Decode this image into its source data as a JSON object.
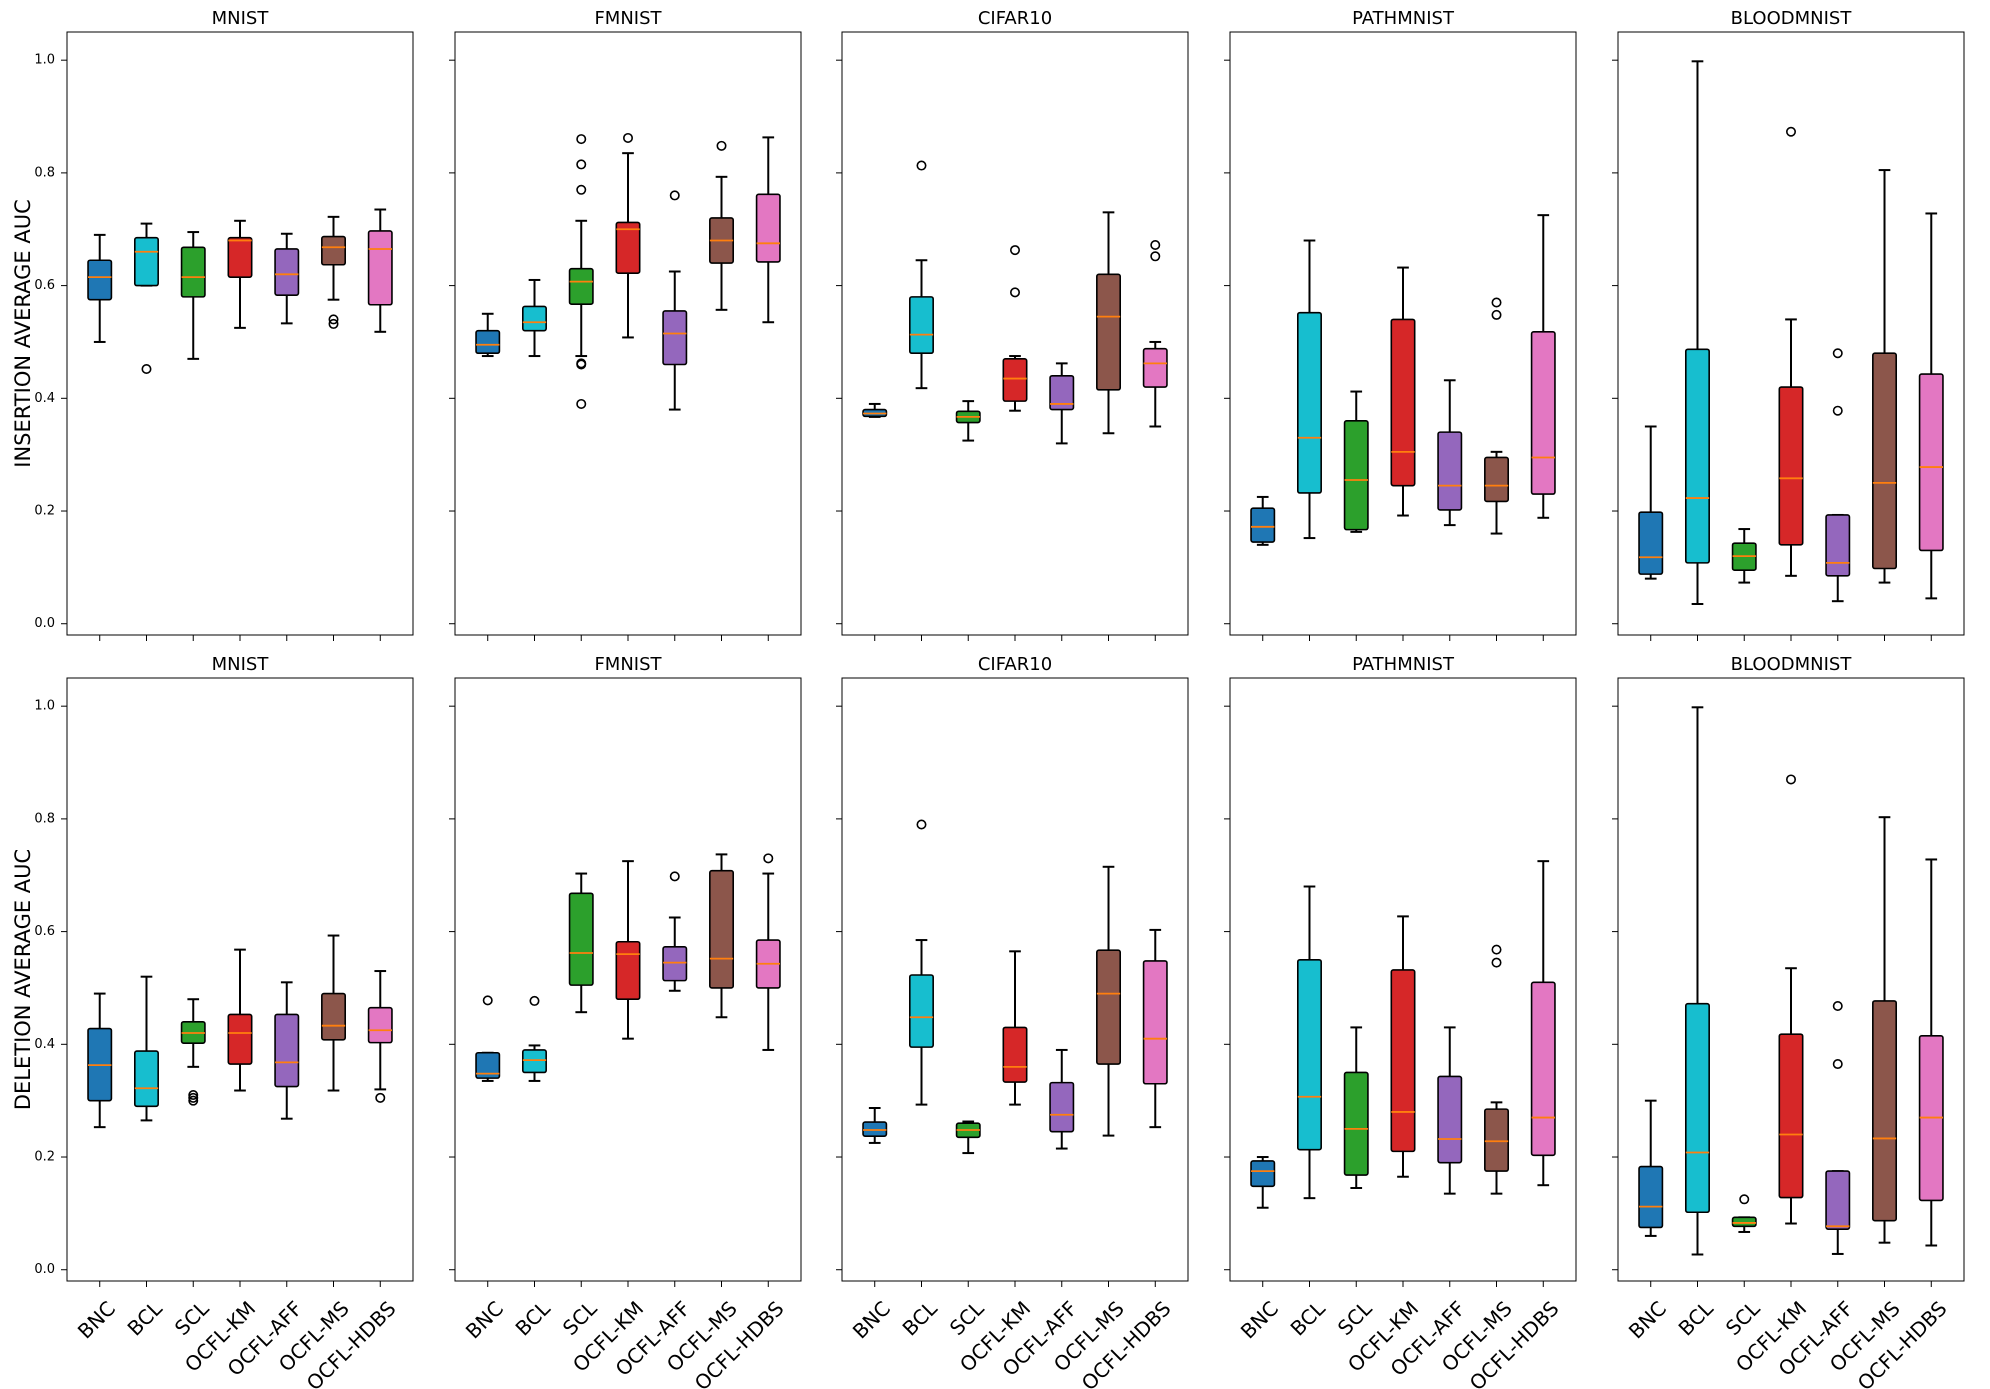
{
  "chart_data": {
    "type": "box",
    "categories": [
      "BNC",
      "BCL",
      "SCL",
      "OCFL-KM",
      "OCFL-AFF",
      "OCFL-MS",
      "OCFL-HDBS"
    ],
    "colors": [
      "#1f77b4",
      "#17becf",
      "#2ca02c",
      "#d62728",
      "#9467bd",
      "#8c564b",
      "#e377c2"
    ],
    "median_color": "#ff7f0e",
    "ylim": [
      -0.02,
      1.05
    ],
    "yticks": [
      0.0,
      0.2,
      0.4,
      0.6,
      0.8,
      1.0
    ],
    "ytick_labels": [
      "0.0",
      "0.2",
      "0.4",
      "0.6",
      "0.8",
      "1.0"
    ],
    "rows": [
      {
        "ylabel": "INSERTION AVERAGE AUC",
        "panels": [
          {
            "title": "MNIST",
            "boxes": [
              {
                "whislo": 0.5,
                "q1": 0.575,
                "med": 0.615,
                "q3": 0.645,
                "whishi": 0.69,
                "fliers": []
              },
              {
                "whislo": 0.6,
                "q1": 0.6,
                "med": 0.66,
                "q3": 0.685,
                "whishi": 0.71,
                "fliers": [
                  0.452
                ]
              },
              {
                "whislo": 0.47,
                "q1": 0.58,
                "med": 0.615,
                "q3": 0.668,
                "whishi": 0.695,
                "fliers": []
              },
              {
                "whislo": 0.525,
                "q1": 0.615,
                "med": 0.68,
                "q3": 0.685,
                "whishi": 0.715,
                "fliers": []
              },
              {
                "whislo": 0.533,
                "q1": 0.583,
                "med": 0.62,
                "q3": 0.665,
                "whishi": 0.692,
                "fliers": []
              },
              {
                "whislo": 0.575,
                "q1": 0.637,
                "med": 0.668,
                "q3": 0.687,
                "whishi": 0.722,
                "fliers": [
                  0.532,
                  0.54
                ]
              },
              {
                "whislo": 0.518,
                "q1": 0.566,
                "med": 0.665,
                "q3": 0.697,
                "whishi": 0.735,
                "fliers": []
              }
            ]
          },
          {
            "title": "FMNIST",
            "boxes": [
              {
                "whislo": 0.475,
                "q1": 0.48,
                "med": 0.495,
                "q3": 0.52,
                "whishi": 0.55,
                "fliers": []
              },
              {
                "whislo": 0.475,
                "q1": 0.52,
                "med": 0.535,
                "q3": 0.563,
                "whishi": 0.61,
                "fliers": []
              },
              {
                "whislo": 0.475,
                "q1": 0.567,
                "med": 0.607,
                "q3": 0.63,
                "whishi": 0.715,
                "fliers": [
                  0.39,
                  0.46,
                  0.462,
                  0.77,
                  0.815,
                  0.86
                ]
              },
              {
                "whislo": 0.508,
                "q1": 0.622,
                "med": 0.7,
                "q3": 0.712,
                "whishi": 0.835,
                "fliers": [
                  0.862
                ]
              },
              {
                "whislo": 0.38,
                "q1": 0.46,
                "med": 0.515,
                "q3": 0.555,
                "whishi": 0.625,
                "fliers": [
                  0.76
                ]
              },
              {
                "whislo": 0.557,
                "q1": 0.64,
                "med": 0.68,
                "q3": 0.72,
                "whishi": 0.793,
                "fliers": [
                  0.848
                ]
              },
              {
                "whislo": 0.535,
                "q1": 0.642,
                "med": 0.675,
                "q3": 0.762,
                "whishi": 0.863,
                "fliers": []
              }
            ]
          },
          {
            "title": "CIFAR10",
            "boxes": [
              {
                "whislo": 0.367,
                "q1": 0.368,
                "med": 0.373,
                "q3": 0.38,
                "whishi": 0.39,
                "fliers": []
              },
              {
                "whislo": 0.418,
                "q1": 0.48,
                "med": 0.513,
                "q3": 0.58,
                "whishi": 0.645,
                "fliers": [
                  0.813
                ]
              },
              {
                "whislo": 0.325,
                "q1": 0.357,
                "med": 0.367,
                "q3": 0.377,
                "whishi": 0.395,
                "fliers": []
              },
              {
                "whislo": 0.378,
                "q1": 0.395,
                "med": 0.435,
                "q3": 0.47,
                "whishi": 0.475,
                "fliers": [
                  0.588,
                  0.663
                ]
              },
              {
                "whislo": 0.32,
                "q1": 0.38,
                "med": 0.39,
                "q3": 0.44,
                "whishi": 0.462,
                "fliers": []
              },
              {
                "whislo": 0.338,
                "q1": 0.415,
                "med": 0.545,
                "q3": 0.62,
                "whishi": 0.73,
                "fliers": []
              },
              {
                "whislo": 0.35,
                "q1": 0.42,
                "med": 0.462,
                "q3": 0.488,
                "whishi": 0.5,
                "fliers": [
                  0.652,
                  0.672
                ]
              }
            ]
          },
          {
            "title": "PATHMNIST",
            "boxes": [
              {
                "whislo": 0.14,
                "q1": 0.145,
                "med": 0.172,
                "q3": 0.205,
                "whishi": 0.225,
                "fliers": []
              },
              {
                "whislo": 0.152,
                "q1": 0.232,
                "med": 0.33,
                "q3": 0.552,
                "whishi": 0.68,
                "fliers": []
              },
              {
                "whislo": 0.163,
                "q1": 0.167,
                "med": 0.255,
                "q3": 0.36,
                "whishi": 0.412,
                "fliers": []
              },
              {
                "whislo": 0.192,
                "q1": 0.245,
                "med": 0.305,
                "q3": 0.54,
                "whishi": 0.632,
                "fliers": []
              },
              {
                "whislo": 0.175,
                "q1": 0.202,
                "med": 0.245,
                "q3": 0.34,
                "whishi": 0.432,
                "fliers": []
              },
              {
                "whislo": 0.16,
                "q1": 0.217,
                "med": 0.245,
                "q3": 0.295,
                "whishi": 0.305,
                "fliers": [
                  0.548,
                  0.57
                ]
              },
              {
                "whislo": 0.188,
                "q1": 0.23,
                "med": 0.295,
                "q3": 0.518,
                "whishi": 0.725,
                "fliers": []
              }
            ]
          },
          {
            "title": "BLOODMNIST",
            "boxes": [
              {
                "whislo": 0.08,
                "q1": 0.088,
                "med": 0.118,
                "q3": 0.198,
                "whishi": 0.35,
                "fliers": []
              },
              {
                "whislo": 0.035,
                "q1": 0.108,
                "med": 0.223,
                "q3": 0.487,
                "whishi": 0.998,
                "fliers": []
              },
              {
                "whislo": 0.073,
                "q1": 0.095,
                "med": 0.12,
                "q3": 0.143,
                "whishi": 0.168,
                "fliers": []
              },
              {
                "whislo": 0.085,
                "q1": 0.14,
                "med": 0.258,
                "q3": 0.42,
                "whishi": 0.54,
                "fliers": [
                  0.873
                ]
              },
              {
                "whislo": 0.04,
                "q1": 0.085,
                "med": 0.108,
                "q3": 0.193,
                "whishi": 0.193,
                "fliers": [
                  0.378,
                  0.48
                ]
              },
              {
                "whislo": 0.073,
                "q1": 0.098,
                "med": 0.25,
                "q3": 0.48,
                "whishi": 0.805,
                "fliers": []
              },
              {
                "whislo": 0.045,
                "q1": 0.13,
                "med": 0.278,
                "q3": 0.443,
                "whishi": 0.728,
                "fliers": []
              }
            ]
          }
        ]
      },
      {
        "ylabel": "DELETION AVERAGE AUC",
        "panels": [
          {
            "title": "MNIST",
            "boxes": [
              {
                "whislo": 0.253,
                "q1": 0.3,
                "med": 0.363,
                "q3": 0.428,
                "whishi": 0.49,
                "fliers": []
              },
              {
                "whislo": 0.265,
                "q1": 0.29,
                "med": 0.322,
                "q3": 0.388,
                "whishi": 0.52,
                "fliers": []
              },
              {
                "whislo": 0.36,
                "q1": 0.402,
                "med": 0.42,
                "q3": 0.44,
                "whishi": 0.48,
                "fliers": [
                  0.3,
                  0.305,
                  0.31
                ]
              },
              {
                "whislo": 0.318,
                "q1": 0.365,
                "med": 0.42,
                "q3": 0.453,
                "whishi": 0.568,
                "fliers": []
              },
              {
                "whislo": 0.268,
                "q1": 0.325,
                "med": 0.368,
                "q3": 0.453,
                "whishi": 0.51,
                "fliers": []
              },
              {
                "whislo": 0.318,
                "q1": 0.408,
                "med": 0.433,
                "q3": 0.49,
                "whishi": 0.593,
                "fliers": []
              },
              {
                "whislo": 0.32,
                "q1": 0.403,
                "med": 0.425,
                "q3": 0.465,
                "whishi": 0.53,
                "fliers": [
                  0.305
                ]
              }
            ]
          },
          {
            "title": "FMNIST",
            "boxes": [
              {
                "whislo": 0.335,
                "q1": 0.34,
                "med": 0.348,
                "q3": 0.385,
                "whishi": 0.385,
                "fliers": [
                  0.478
                ]
              },
              {
                "whislo": 0.335,
                "q1": 0.35,
                "med": 0.372,
                "q3": 0.39,
                "whishi": 0.398,
                "fliers": [
                  0.477
                ]
              },
              {
                "whislo": 0.457,
                "q1": 0.505,
                "med": 0.562,
                "q3": 0.668,
                "whishi": 0.703,
                "fliers": []
              },
              {
                "whislo": 0.41,
                "q1": 0.48,
                "med": 0.56,
                "q3": 0.582,
                "whishi": 0.725,
                "fliers": []
              },
              {
                "whislo": 0.495,
                "q1": 0.513,
                "med": 0.545,
                "q3": 0.573,
                "whishi": 0.625,
                "fliers": [
                  0.698
                ]
              },
              {
                "whislo": 0.448,
                "q1": 0.5,
                "med": 0.552,
                "q3": 0.708,
                "whishi": 0.737,
                "fliers": []
              },
              {
                "whislo": 0.39,
                "q1": 0.5,
                "med": 0.543,
                "q3": 0.585,
                "whishi": 0.703,
                "fliers": [
                  0.73
                ]
              }
            ]
          },
          {
            "title": "CIFAR10",
            "boxes": [
              {
                "whislo": 0.225,
                "q1": 0.237,
                "med": 0.248,
                "q3": 0.262,
                "whishi": 0.287,
                "fliers": []
              },
              {
                "whislo": 0.293,
                "q1": 0.395,
                "med": 0.448,
                "q3": 0.523,
                "whishi": 0.585,
                "fliers": [
                  0.79
                ]
              },
              {
                "whislo": 0.207,
                "q1": 0.235,
                "med": 0.248,
                "q3": 0.26,
                "whishi": 0.263,
                "fliers": []
              },
              {
                "whislo": 0.293,
                "q1": 0.333,
                "med": 0.36,
                "q3": 0.43,
                "whishi": 0.565,
                "fliers": []
              },
              {
                "whislo": 0.215,
                "q1": 0.245,
                "med": 0.275,
                "q3": 0.332,
                "whishi": 0.39,
                "fliers": []
              },
              {
                "whislo": 0.238,
                "q1": 0.365,
                "med": 0.49,
                "q3": 0.567,
                "whishi": 0.715,
                "fliers": []
              },
              {
                "whislo": 0.253,
                "q1": 0.33,
                "med": 0.41,
                "q3": 0.548,
                "whishi": 0.603,
                "fliers": []
              }
            ]
          },
          {
            "title": "PATHMNIST",
            "boxes": [
              {
                "whislo": 0.11,
                "q1": 0.148,
                "med": 0.175,
                "q3": 0.193,
                "whishi": 0.2,
                "fliers": []
              },
              {
                "whislo": 0.127,
                "q1": 0.213,
                "med": 0.307,
                "q3": 0.55,
                "whishi": 0.68,
                "fliers": []
              },
              {
                "whislo": 0.145,
                "q1": 0.168,
                "med": 0.25,
                "q3": 0.35,
                "whishi": 0.43,
                "fliers": []
              },
              {
                "whislo": 0.165,
                "q1": 0.21,
                "med": 0.28,
                "q3": 0.532,
                "whishi": 0.627,
                "fliers": []
              },
              {
                "whislo": 0.135,
                "q1": 0.19,
                "med": 0.232,
                "q3": 0.343,
                "whishi": 0.43,
                "fliers": []
              },
              {
                "whislo": 0.135,
                "q1": 0.175,
                "med": 0.228,
                "q3": 0.285,
                "whishi": 0.297,
                "fliers": [
                  0.545,
                  0.568
                ]
              },
              {
                "whislo": 0.15,
                "q1": 0.203,
                "med": 0.27,
                "q3": 0.51,
                "whishi": 0.725,
                "fliers": []
              }
            ]
          },
          {
            "title": "BLOODMNIST",
            "boxes": [
              {
                "whislo": 0.06,
                "q1": 0.075,
                "med": 0.112,
                "q3": 0.183,
                "whishi": 0.3,
                "fliers": []
              },
              {
                "whislo": 0.027,
                "q1": 0.102,
                "med": 0.208,
                "q3": 0.472,
                "whishi": 0.998,
                "fliers": []
              },
              {
                "whislo": 0.067,
                "q1": 0.077,
                "med": 0.083,
                "q3": 0.093,
                "whishi": 0.093,
                "fliers": [
                  0.125
                ]
              },
              {
                "whislo": 0.082,
                "q1": 0.128,
                "med": 0.24,
                "q3": 0.418,
                "whishi": 0.535,
                "fliers": [
                  0.87
                ]
              },
              {
                "whislo": 0.028,
                "q1": 0.072,
                "med": 0.077,
                "q3": 0.175,
                "whishi": 0.175,
                "fliers": [
                  0.365,
                  0.468
                ]
              },
              {
                "whislo": 0.048,
                "q1": 0.087,
                "med": 0.233,
                "q3": 0.477,
                "whishi": 0.803,
                "fliers": []
              },
              {
                "whislo": 0.043,
                "q1": 0.123,
                "med": 0.27,
                "q3": 0.415,
                "whishi": 0.728,
                "fliers": []
              }
            ]
          }
        ]
      }
    ]
  }
}
